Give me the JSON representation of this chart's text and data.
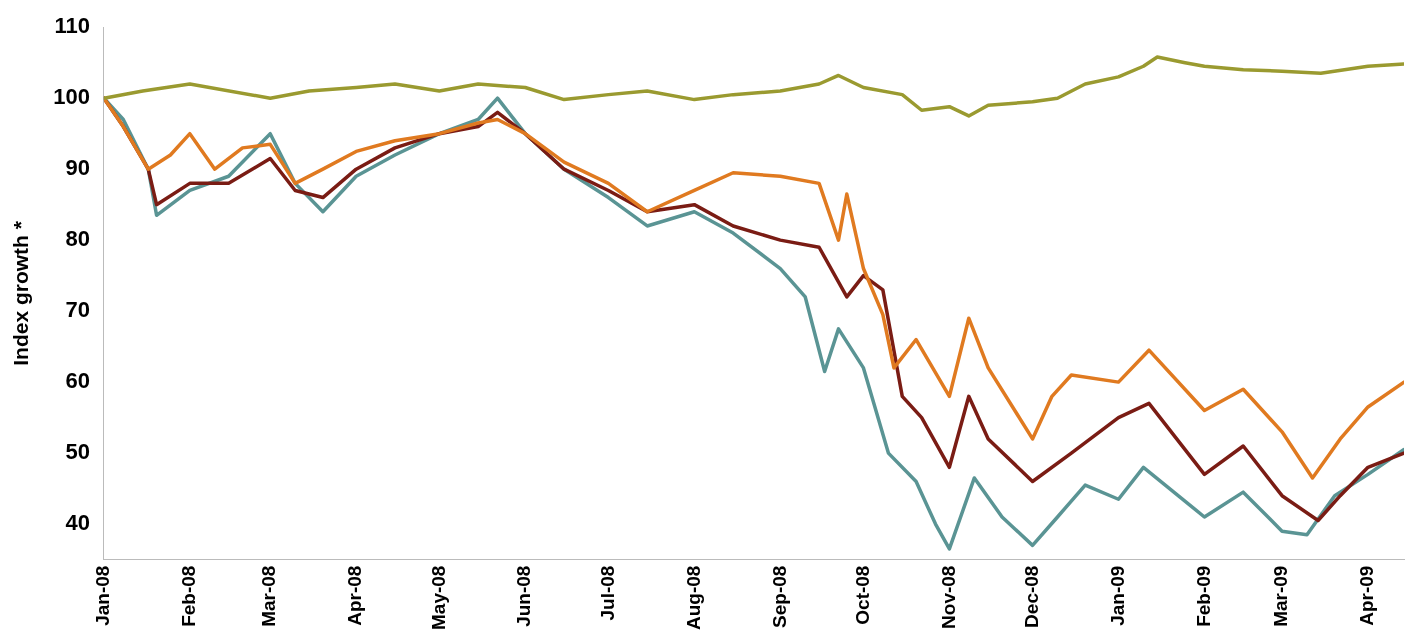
{
  "chart_data": {
    "type": "line",
    "ylabel": "Index growth *",
    "ylim": [
      35,
      110
    ],
    "yticks": [
      40,
      50,
      60,
      70,
      80,
      90,
      100,
      110
    ],
    "xlim": [
      "2008-01-01",
      "2009-04-14"
    ],
    "xticks": [
      {
        "value": "2008-01-01",
        "label": "Jan-08"
      },
      {
        "value": "2008-02-01",
        "label": "Feb-08"
      },
      {
        "value": "2008-03-01",
        "label": "Mar-08"
      },
      {
        "value": "2008-04-01",
        "label": "Apr-08"
      },
      {
        "value": "2008-05-01",
        "label": "May-08"
      },
      {
        "value": "2008-06-01",
        "label": "Jun-08"
      },
      {
        "value": "2008-07-01",
        "label": "Jul-08"
      },
      {
        "value": "2008-08-01",
        "label": "Aug-08"
      },
      {
        "value": "2008-09-01",
        "label": "Sep-08"
      },
      {
        "value": "2008-10-01",
        "label": "Oct-08"
      },
      {
        "value": "2008-11-01",
        "label": "Nov-08"
      },
      {
        "value": "2008-12-01",
        "label": "Dec-08"
      },
      {
        "value": "2009-01-01",
        "label": "Jan-09"
      },
      {
        "value": "2009-02-01",
        "label": "Feb-09"
      },
      {
        "value": "2009-03-01",
        "label": "Mar-09"
      },
      {
        "value": "2009-04-01",
        "label": "Apr-09"
      }
    ],
    "grid": false,
    "legend": false,
    "marker": "none",
    "line_style": "solid",
    "series": [
      {
        "color": "#9a9a30",
        "x": [
          "2008-01-01",
          "2008-01-15",
          "2008-02-01",
          "2008-03-01",
          "2008-03-15",
          "2008-04-01",
          "2008-04-15",
          "2008-05-01",
          "2008-05-15",
          "2008-06-01",
          "2008-06-15",
          "2008-07-01",
          "2008-07-15",
          "2008-08-01",
          "2008-08-15",
          "2008-09-01",
          "2008-09-15",
          "2008-09-22",
          "2008-10-01",
          "2008-10-15",
          "2008-10-22",
          "2008-11-01",
          "2008-11-08",
          "2008-11-15",
          "2008-12-01",
          "2008-12-10",
          "2008-12-20",
          "2009-01-01",
          "2009-01-10",
          "2009-01-15",
          "2009-01-25",
          "2009-02-01",
          "2009-02-15",
          "2009-03-01",
          "2009-03-15",
          "2009-04-01",
          "2009-04-14"
        ],
        "values": [
          100,
          101,
          102,
          100,
          101,
          101.5,
          102,
          101,
          102,
          101.5,
          99.8,
          100.5,
          101,
          99.8,
          100.5,
          101,
          102,
          103.2,
          101.5,
          100.5,
          98.3,
          98.8,
          97.5,
          99,
          99.5,
          100,
          102,
          103,
          104.5,
          105.8,
          105,
          104.5,
          104,
          103.8,
          103.5,
          104.5,
          104.8
        ]
      },
      {
        "color": "#e07a20",
        "x": [
          "2008-01-01",
          "2008-01-08",
          "2008-01-17",
          "2008-01-25",
          "2008-02-01",
          "2008-02-10",
          "2008-02-20",
          "2008-03-01",
          "2008-03-10",
          "2008-03-20",
          "2008-04-01",
          "2008-04-15",
          "2008-05-01",
          "2008-05-15",
          "2008-05-22",
          "2008-06-01",
          "2008-06-15",
          "2008-07-01",
          "2008-07-15",
          "2008-08-01",
          "2008-08-15",
          "2008-09-01",
          "2008-09-15",
          "2008-09-22",
          "2008-09-25",
          "2008-10-01",
          "2008-10-08",
          "2008-10-12",
          "2008-10-20",
          "2008-11-01",
          "2008-11-08",
          "2008-11-15",
          "2008-12-01",
          "2008-12-08",
          "2008-12-15",
          "2009-01-01",
          "2009-01-12",
          "2009-02-01",
          "2009-02-15",
          "2009-03-01",
          "2009-03-12",
          "2009-03-22",
          "2009-04-01",
          "2009-04-14"
        ],
        "values": [
          100,
          96,
          90,
          92,
          95,
          90,
          93,
          93.5,
          88,
          90,
          92.5,
          94,
          95,
          96.5,
          97,
          95,
          91,
          88,
          84,
          87,
          89.5,
          89,
          88,
          80,
          86.5,
          76,
          69.5,
          62,
          66,
          58,
          69,
          62,
          52,
          58,
          61,
          60,
          64.5,
          56,
          59,
          53,
          46.5,
          52,
          56.5,
          60
        ]
      },
      {
        "color": "#7a1c14",
        "x": [
          "2008-01-01",
          "2008-01-08",
          "2008-01-17",
          "2008-01-20",
          "2008-02-01",
          "2008-02-15",
          "2008-03-01",
          "2008-03-10",
          "2008-03-20",
          "2008-04-01",
          "2008-04-15",
          "2008-05-01",
          "2008-05-15",
          "2008-05-22",
          "2008-06-01",
          "2008-06-15",
          "2008-07-01",
          "2008-07-15",
          "2008-08-01",
          "2008-08-15",
          "2008-09-01",
          "2008-09-15",
          "2008-09-25",
          "2008-10-01",
          "2008-10-08",
          "2008-10-15",
          "2008-10-22",
          "2008-11-01",
          "2008-11-08",
          "2008-11-15",
          "2008-12-01",
          "2008-12-15",
          "2009-01-01",
          "2009-01-12",
          "2009-02-01",
          "2009-02-15",
          "2009-03-01",
          "2009-03-14",
          "2009-03-22",
          "2009-04-01",
          "2009-04-14"
        ],
        "values": [
          100,
          96,
          90,
          85,
          88,
          88,
          91.5,
          87,
          86,
          90,
          93,
          95,
          96,
          98,
          95,
          90,
          87,
          84,
          85,
          82,
          80,
          79,
          72,
          75,
          73,
          58,
          55,
          48,
          58,
          52,
          46,
          50,
          55,
          57,
          47,
          51,
          44,
          40.5,
          44,
          48,
          50
        ]
      },
      {
        "color": "#5a9494",
        "x": [
          "2008-01-01",
          "2008-01-08",
          "2008-01-17",
          "2008-01-20",
          "2008-02-01",
          "2008-02-15",
          "2008-03-01",
          "2008-03-10",
          "2008-03-20",
          "2008-04-01",
          "2008-04-15",
          "2008-05-01",
          "2008-05-15",
          "2008-05-22",
          "2008-06-01",
          "2008-06-15",
          "2008-07-01",
          "2008-07-15",
          "2008-08-01",
          "2008-08-15",
          "2008-09-01",
          "2008-09-10",
          "2008-09-17",
          "2008-09-22",
          "2008-10-01",
          "2008-10-10",
          "2008-10-20",
          "2008-10-27",
          "2008-11-01",
          "2008-11-10",
          "2008-11-20",
          "2008-12-01",
          "2008-12-10",
          "2008-12-20",
          "2009-01-01",
          "2009-01-10",
          "2009-02-01",
          "2009-02-15",
          "2009-03-01",
          "2009-03-10",
          "2009-03-20",
          "2009-04-01",
          "2009-04-14"
        ],
        "values": [
          100,
          97,
          90,
          83.5,
          87,
          89,
          95,
          88,
          84,
          89,
          92,
          95,
          97,
          100,
          95,
          90,
          86,
          82,
          84,
          81,
          76,
          72,
          61.5,
          67.5,
          62,
          50,
          46,
          40,
          36.5,
          46.5,
          41,
          37,
          41,
          45.5,
          43.5,
          48,
          41,
          44.5,
          39,
          38.5,
          44,
          47,
          50.5
        ]
      }
    ]
  }
}
